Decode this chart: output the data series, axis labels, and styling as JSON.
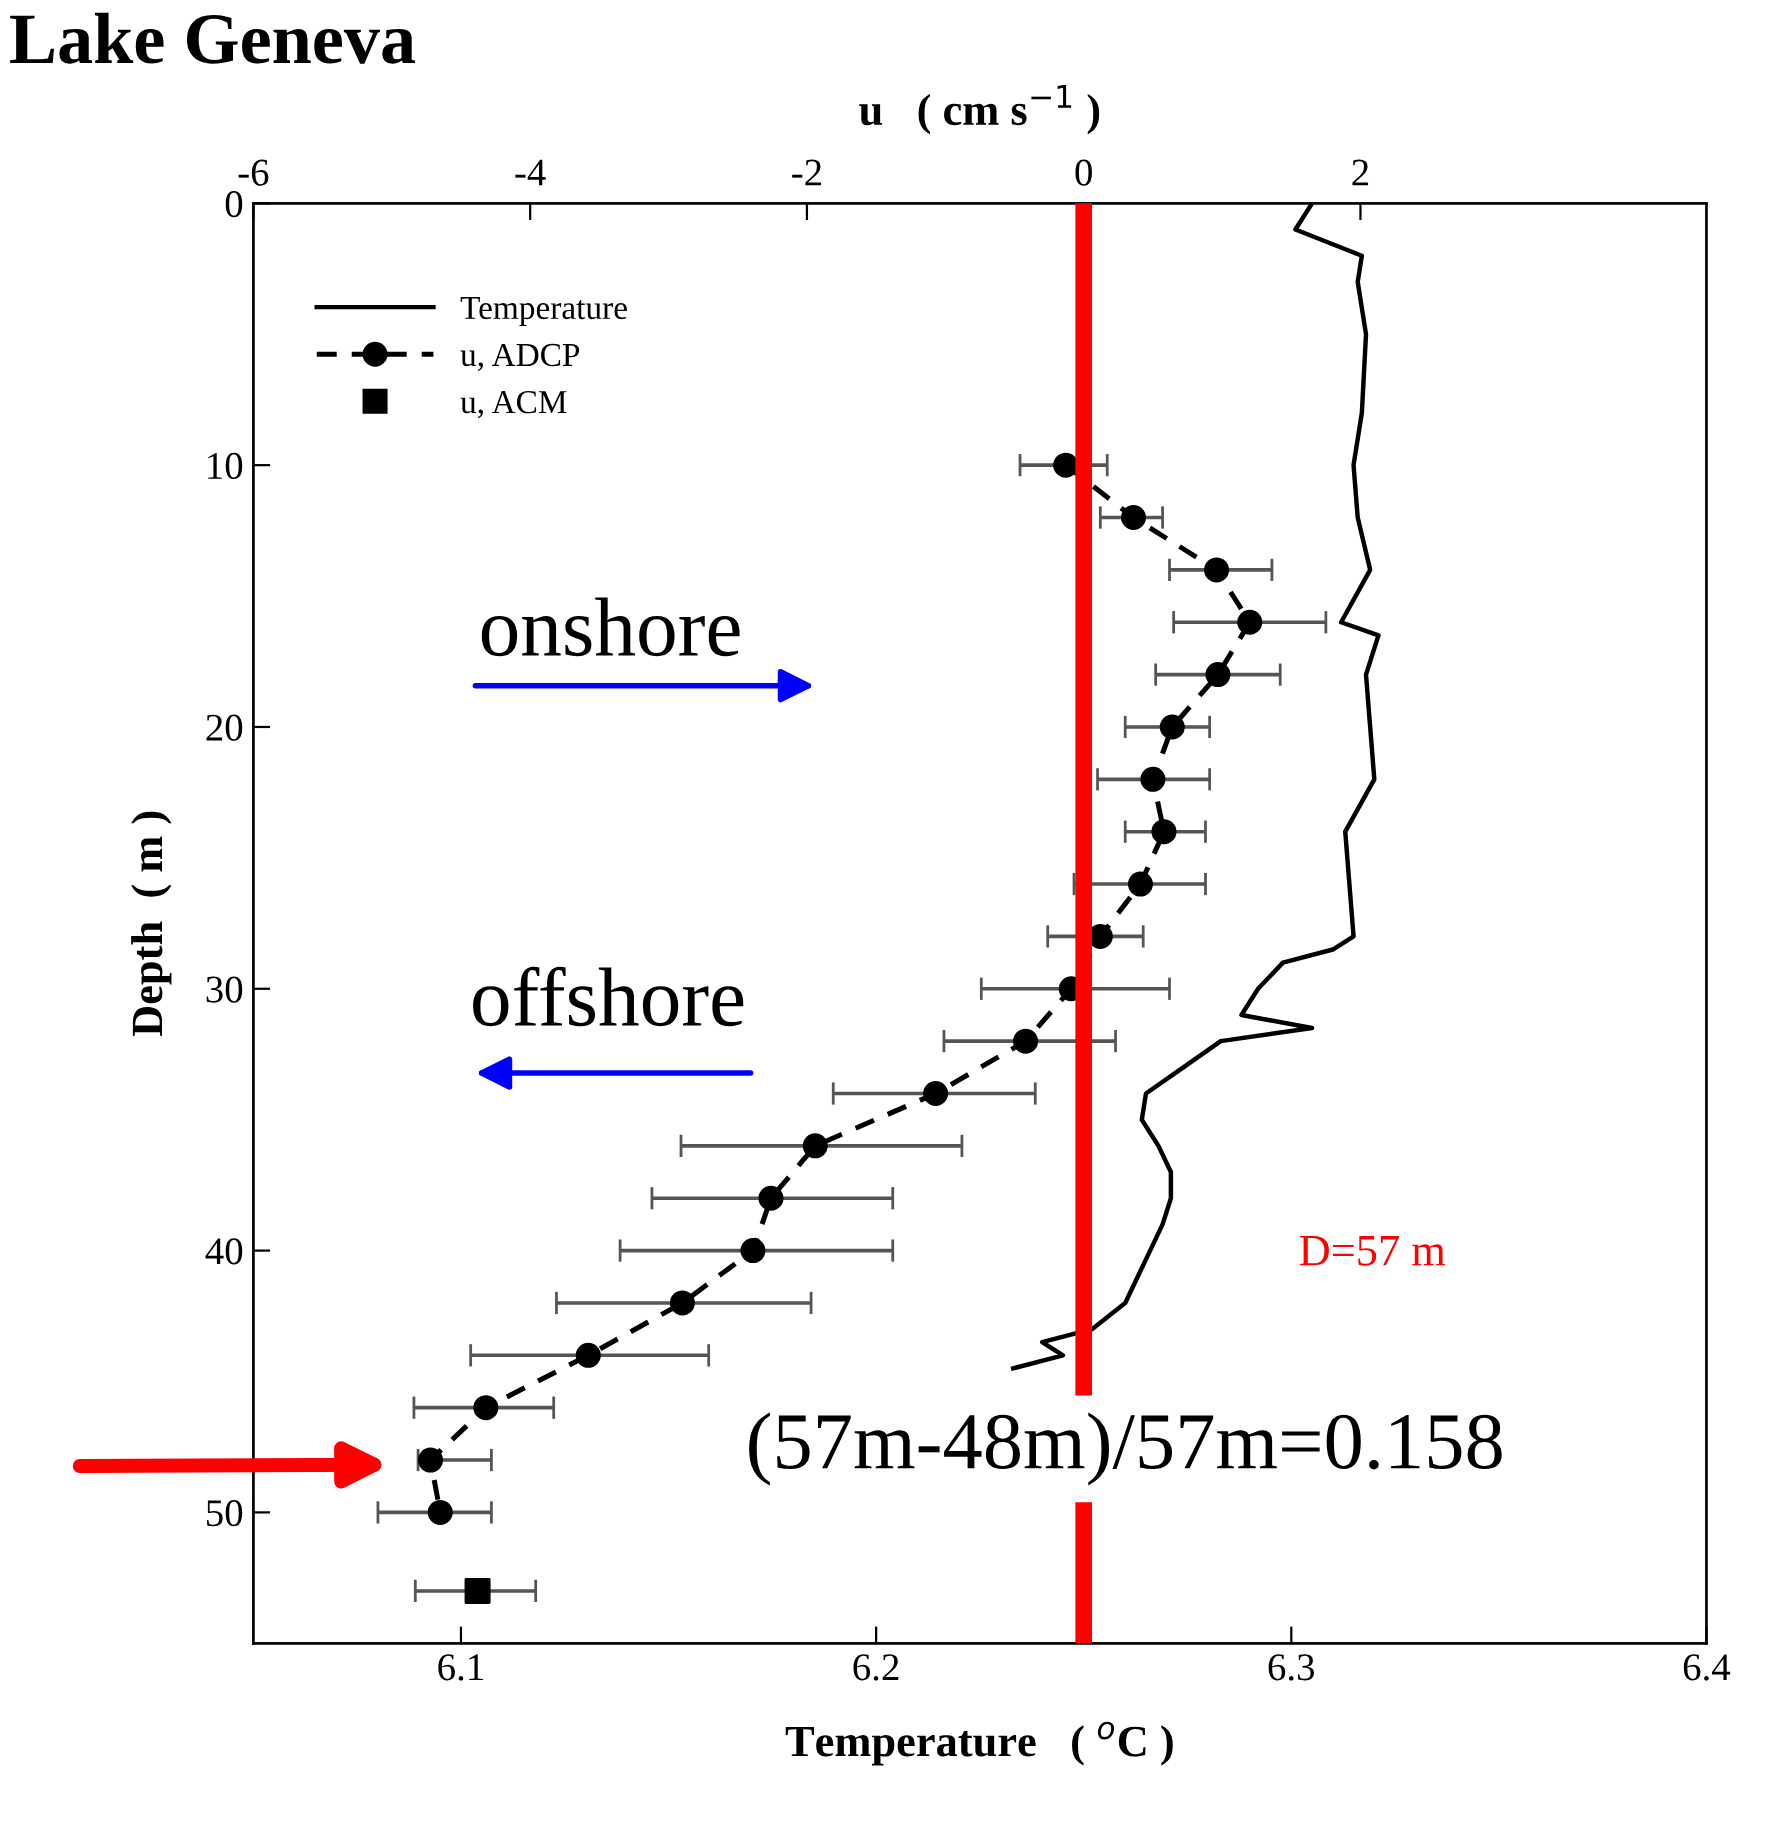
{
  "chart_data": {
    "type": "line",
    "title": "Lake Geneva",
    "xlabel": "Temperature   ( $^{o}$C )",
    "ylabel": "Depth  ( m )",
    "x2label": "u   ( cm s$^{−1}$ )",
    "xlim": [
      6.05,
      6.4
    ],
    "xticks": [
      6.1,
      6.2,
      6.3,
      6.4
    ],
    "x2lim": [
      -6,
      4.5
    ],
    "x2ticks": [
      -6,
      -4,
      -2,
      0,
      2
    ],
    "ylim": [
      55,
      0
    ],
    "yticks": [
      0,
      10,
      20,
      30,
      40,
      50
    ],
    "series": [
      {
        "name": "Temperature",
        "color": "#000000",
        "line_style": "solid",
        "marker": "none",
        "x": [
          6.305,
          6.301,
          6.317,
          6.316,
          6.318,
          6.317,
          6.315,
          6.316,
          6.319,
          6.312,
          6.321,
          6.318,
          6.319,
          6.32,
          6.313,
          6.314,
          6.315,
          6.31,
          6.298,
          6.292,
          6.288,
          6.305,
          6.283,
          6.274,
          6.265,
          6.264,
          6.268,
          6.271,
          6.271,
          6.269,
          6.266,
          6.263,
          6.26,
          6.252,
          6.24,
          6.245,
          6.233
        ],
        "values": [
          0,
          1,
          2,
          3,
          5,
          8,
          10,
          12,
          14,
          16,
          16.5,
          18,
          20,
          22,
          24,
          26,
          28,
          28.5,
          29,
          30,
          31,
          31.5,
          32,
          33,
          34,
          35,
          36,
          37,
          38,
          39,
          40,
          41,
          42,
          43,
          43.5,
          44,
          44.5
        ]
      },
      {
        "name": "u, ADCP",
        "type": "line",
        "axis": "x2",
        "color": "#000000",
        "line_style": "dashed",
        "marker": "circle",
        "x": [
          -0.13,
          0.36,
          0.96,
          1.2,
          0.97,
          0.64,
          0.5,
          0.58,
          0.41,
          0.12,
          -0.09,
          -0.42,
          -1.07,
          -1.94,
          -2.26,
          -2.39,
          -2.9,
          -3.58,
          -4.32,
          -4.72,
          -4.65
        ],
        "values": [
          10,
          12,
          14,
          16,
          18,
          20,
          22,
          24,
          26,
          28,
          30,
          32,
          34,
          36,
          38,
          40,
          42,
          44,
          46,
          48,
          50
        ],
        "xerrors": [
          [
            -0.46,
            0.17
          ],
          [
            0.12,
            0.57
          ],
          [
            0.62,
            1.36
          ],
          [
            0.65,
            1.75
          ],
          [
            0.52,
            1.42
          ],
          [
            0.3,
            0.91
          ],
          [
            0.1,
            0.91
          ],
          [
            0.3,
            0.88
          ],
          [
            -0.07,
            0.88
          ],
          [
            -0.26,
            0.43
          ],
          [
            -0.74,
            0.62
          ],
          [
            -1.01,
            0.23
          ],
          [
            -1.81,
            -0.35
          ],
          [
            -2.91,
            -0.88
          ],
          [
            -3.12,
            -1.38
          ],
          [
            -3.35,
            -1.38
          ],
          [
            -3.81,
            -1.97
          ],
          [
            -4.43,
            -2.71
          ],
          [
            -4.84,
            -3.83
          ],
          [
            -4.81,
            -4.28
          ],
          [
            -5.1,
            -4.28
          ]
        ]
      },
      {
        "name": "u, ACM",
        "type": "scatter",
        "axis": "x2",
        "color": "#000000",
        "marker": "square",
        "x": [
          -4.38
        ],
        "values": [
          53
        ],
        "xerrors": [
          [
            -4.83,
            -3.96
          ]
        ]
      }
    ],
    "ref_lines": [
      {
        "axis": "x2",
        "value": 0,
        "color": "#ff0000",
        "line_style": "solid"
      }
    ],
    "annotations": [
      "onshore",
      "offshore",
      "D=57 m",
      "(57m-48m)/57m=0.158"
    ],
    "legend": "top left",
    "grid": false
  }
}
